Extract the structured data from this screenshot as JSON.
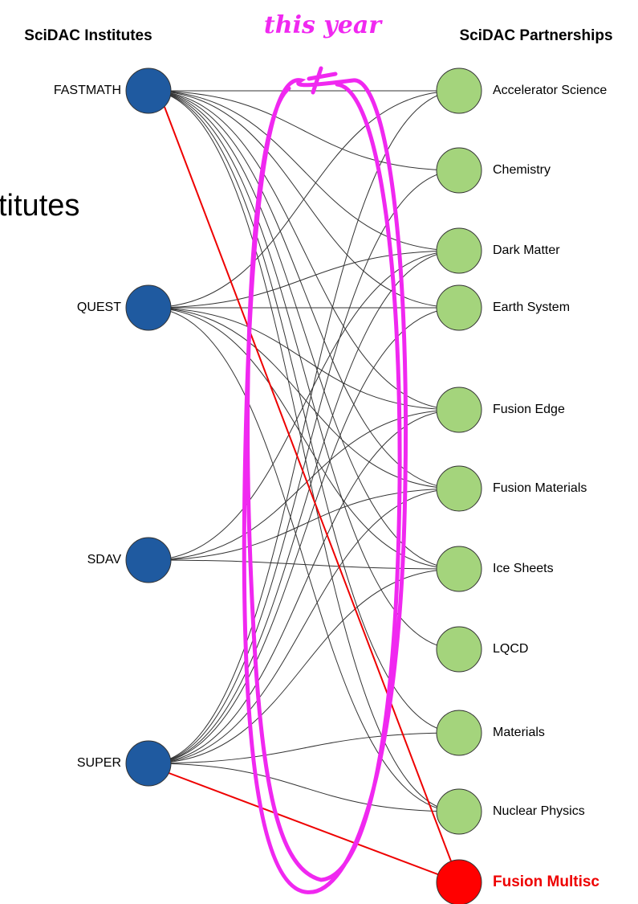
{
  "header": {
    "left_title": "SciDAC Institutes",
    "annotation": "this year",
    "right_title": "SciDAC Partnerships",
    "side_text": "titutes"
  },
  "institutes": [
    {
      "label": "FASTMATH"
    },
    {
      "label": "QUEST"
    },
    {
      "label": "SDAV"
    },
    {
      "label": "SUPER"
    }
  ],
  "partnerships": [
    {
      "label": "Accelerator Science"
    },
    {
      "label": "Chemistry"
    },
    {
      "label": "Dark Matter"
    },
    {
      "label": "Earth System"
    },
    {
      "label": "Fusion Edge"
    },
    {
      "label": "Fusion Materials"
    },
    {
      "label": "Ice Sheets"
    },
    {
      "label": "LQCD"
    },
    {
      "label": "Materials"
    },
    {
      "label": "Nuclear Physics"
    }
  ],
  "new_partnership": {
    "label": "Fusion Multisc"
  }
}
